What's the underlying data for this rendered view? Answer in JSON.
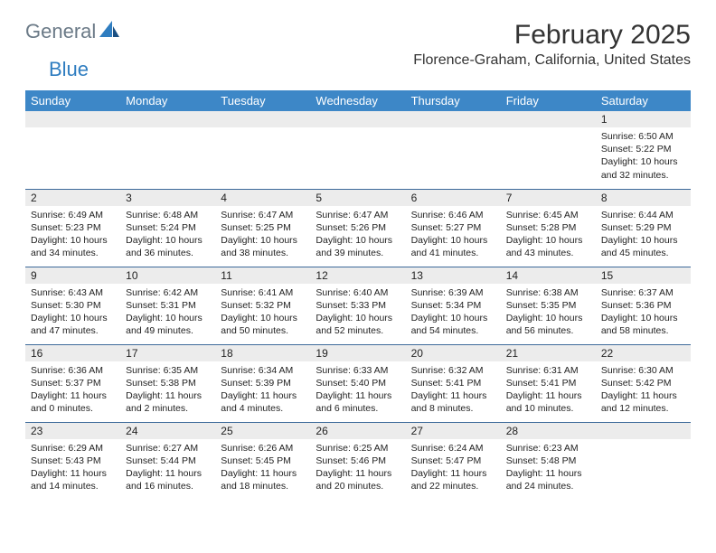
{
  "logo": {
    "text1": "General",
    "text2": "Blue"
  },
  "header": {
    "title": "February 2025",
    "location": "Florence-Graham, California, United States"
  },
  "colors": {
    "header_bg": "#3d87c7",
    "header_text": "#ffffff",
    "daynum_bg": "#ececec",
    "row_border": "#3d6a9a",
    "logo_gray": "#6b7a87",
    "logo_blue": "#2f7dc0"
  },
  "weekdays": [
    "Sunday",
    "Monday",
    "Tuesday",
    "Wednesday",
    "Thursday",
    "Friday",
    "Saturday"
  ],
  "weeks": [
    [
      {
        "day": ""
      },
      {
        "day": ""
      },
      {
        "day": ""
      },
      {
        "day": ""
      },
      {
        "day": ""
      },
      {
        "day": ""
      },
      {
        "day": "1",
        "sunrise": "Sunrise: 6:50 AM",
        "sunset": "Sunset: 5:22 PM",
        "daylight": "Daylight: 10 hours and 32 minutes."
      }
    ],
    [
      {
        "day": "2",
        "sunrise": "Sunrise: 6:49 AM",
        "sunset": "Sunset: 5:23 PM",
        "daylight": "Daylight: 10 hours and 34 minutes."
      },
      {
        "day": "3",
        "sunrise": "Sunrise: 6:48 AM",
        "sunset": "Sunset: 5:24 PM",
        "daylight": "Daylight: 10 hours and 36 minutes."
      },
      {
        "day": "4",
        "sunrise": "Sunrise: 6:47 AM",
        "sunset": "Sunset: 5:25 PM",
        "daylight": "Daylight: 10 hours and 38 minutes."
      },
      {
        "day": "5",
        "sunrise": "Sunrise: 6:47 AM",
        "sunset": "Sunset: 5:26 PM",
        "daylight": "Daylight: 10 hours and 39 minutes."
      },
      {
        "day": "6",
        "sunrise": "Sunrise: 6:46 AM",
        "sunset": "Sunset: 5:27 PM",
        "daylight": "Daylight: 10 hours and 41 minutes."
      },
      {
        "day": "7",
        "sunrise": "Sunrise: 6:45 AM",
        "sunset": "Sunset: 5:28 PM",
        "daylight": "Daylight: 10 hours and 43 minutes."
      },
      {
        "day": "8",
        "sunrise": "Sunrise: 6:44 AM",
        "sunset": "Sunset: 5:29 PM",
        "daylight": "Daylight: 10 hours and 45 minutes."
      }
    ],
    [
      {
        "day": "9",
        "sunrise": "Sunrise: 6:43 AM",
        "sunset": "Sunset: 5:30 PM",
        "daylight": "Daylight: 10 hours and 47 minutes."
      },
      {
        "day": "10",
        "sunrise": "Sunrise: 6:42 AM",
        "sunset": "Sunset: 5:31 PM",
        "daylight": "Daylight: 10 hours and 49 minutes."
      },
      {
        "day": "11",
        "sunrise": "Sunrise: 6:41 AM",
        "sunset": "Sunset: 5:32 PM",
        "daylight": "Daylight: 10 hours and 50 minutes."
      },
      {
        "day": "12",
        "sunrise": "Sunrise: 6:40 AM",
        "sunset": "Sunset: 5:33 PM",
        "daylight": "Daylight: 10 hours and 52 minutes."
      },
      {
        "day": "13",
        "sunrise": "Sunrise: 6:39 AM",
        "sunset": "Sunset: 5:34 PM",
        "daylight": "Daylight: 10 hours and 54 minutes."
      },
      {
        "day": "14",
        "sunrise": "Sunrise: 6:38 AM",
        "sunset": "Sunset: 5:35 PM",
        "daylight": "Daylight: 10 hours and 56 minutes."
      },
      {
        "day": "15",
        "sunrise": "Sunrise: 6:37 AM",
        "sunset": "Sunset: 5:36 PM",
        "daylight": "Daylight: 10 hours and 58 minutes."
      }
    ],
    [
      {
        "day": "16",
        "sunrise": "Sunrise: 6:36 AM",
        "sunset": "Sunset: 5:37 PM",
        "daylight": "Daylight: 11 hours and 0 minutes."
      },
      {
        "day": "17",
        "sunrise": "Sunrise: 6:35 AM",
        "sunset": "Sunset: 5:38 PM",
        "daylight": "Daylight: 11 hours and 2 minutes."
      },
      {
        "day": "18",
        "sunrise": "Sunrise: 6:34 AM",
        "sunset": "Sunset: 5:39 PM",
        "daylight": "Daylight: 11 hours and 4 minutes."
      },
      {
        "day": "19",
        "sunrise": "Sunrise: 6:33 AM",
        "sunset": "Sunset: 5:40 PM",
        "daylight": "Daylight: 11 hours and 6 minutes."
      },
      {
        "day": "20",
        "sunrise": "Sunrise: 6:32 AM",
        "sunset": "Sunset: 5:41 PM",
        "daylight": "Daylight: 11 hours and 8 minutes."
      },
      {
        "day": "21",
        "sunrise": "Sunrise: 6:31 AM",
        "sunset": "Sunset: 5:41 PM",
        "daylight": "Daylight: 11 hours and 10 minutes."
      },
      {
        "day": "22",
        "sunrise": "Sunrise: 6:30 AM",
        "sunset": "Sunset: 5:42 PM",
        "daylight": "Daylight: 11 hours and 12 minutes."
      }
    ],
    [
      {
        "day": "23",
        "sunrise": "Sunrise: 6:29 AM",
        "sunset": "Sunset: 5:43 PM",
        "daylight": "Daylight: 11 hours and 14 minutes."
      },
      {
        "day": "24",
        "sunrise": "Sunrise: 6:27 AM",
        "sunset": "Sunset: 5:44 PM",
        "daylight": "Daylight: 11 hours and 16 minutes."
      },
      {
        "day": "25",
        "sunrise": "Sunrise: 6:26 AM",
        "sunset": "Sunset: 5:45 PM",
        "daylight": "Daylight: 11 hours and 18 minutes."
      },
      {
        "day": "26",
        "sunrise": "Sunrise: 6:25 AM",
        "sunset": "Sunset: 5:46 PM",
        "daylight": "Daylight: 11 hours and 20 minutes."
      },
      {
        "day": "27",
        "sunrise": "Sunrise: 6:24 AM",
        "sunset": "Sunset: 5:47 PM",
        "daylight": "Daylight: 11 hours and 22 minutes."
      },
      {
        "day": "28",
        "sunrise": "Sunrise: 6:23 AM",
        "sunset": "Sunset: 5:48 PM",
        "daylight": "Daylight: 11 hours and 24 minutes."
      },
      {
        "day": ""
      }
    ]
  ]
}
